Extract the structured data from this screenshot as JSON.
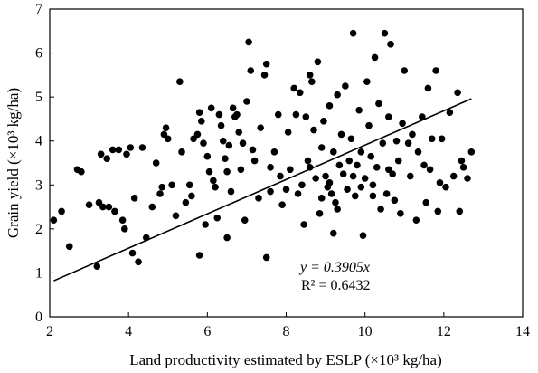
{
  "chart_data": {
    "type": "scatter",
    "title": "",
    "xlabel": "Land productivity estimated by ESLP (×10³ kg/ha)",
    "ylabel": "Grain yield (×10³ kg/ha)",
    "xlim": [
      2,
      14
    ],
    "ylim": [
      0,
      7
    ],
    "xticks": [
      2,
      4,
      6,
      8,
      10,
      12,
      14
    ],
    "yticks": [
      0,
      1,
      2,
      3,
      4,
      5,
      6,
      7
    ],
    "grid": false,
    "marker_color": "#000000",
    "series": [
      {
        "points": [
          [
            2.1,
            2.2
          ],
          [
            2.3,
            2.4
          ],
          [
            2.5,
            1.6
          ],
          [
            2.7,
            3.35
          ],
          [
            2.8,
            3.3
          ],
          [
            3.0,
            2.55
          ],
          [
            3.2,
            1.15
          ],
          [
            3.25,
            2.6
          ],
          [
            3.3,
            3.7
          ],
          [
            3.35,
            2.5
          ],
          [
            3.45,
            3.6
          ],
          [
            3.5,
            2.5
          ],
          [
            3.6,
            3.8
          ],
          [
            3.65,
            2.4
          ],
          [
            3.75,
            3.8
          ],
          [
            3.85,
            2.2
          ],
          [
            3.9,
            2.0
          ],
          [
            3.95,
            3.7
          ],
          [
            4.05,
            3.85
          ],
          [
            4.15,
            2.7
          ],
          [
            4.1,
            1.45
          ],
          [
            4.25,
            1.25
          ],
          [
            4.35,
            3.85
          ],
          [
            4.45,
            1.8
          ],
          [
            4.6,
            2.5
          ],
          [
            4.7,
            3.5
          ],
          [
            4.8,
            2.8
          ],
          [
            4.85,
            2.95
          ],
          [
            4.9,
            4.15
          ],
          [
            4.95,
            4.3
          ],
          [
            5.0,
            4.05
          ],
          [
            5.1,
            3.0
          ],
          [
            5.2,
            2.3
          ],
          [
            5.3,
            5.35
          ],
          [
            5.35,
            3.75
          ],
          [
            5.45,
            2.6
          ],
          [
            5.55,
            3.0
          ],
          [
            5.6,
            2.75
          ],
          [
            5.65,
            4.05
          ],
          [
            5.75,
            4.15
          ],
          [
            5.8,
            4.65
          ],
          [
            5.85,
            4.45
          ],
          [
            5.9,
            3.95
          ],
          [
            5.95,
            2.1
          ],
          [
            6.0,
            3.65
          ],
          [
            6.05,
            3.3
          ],
          [
            6.1,
            4.75
          ],
          [
            6.15,
            3.1
          ],
          [
            6.2,
            2.95
          ],
          [
            6.25,
            2.25
          ],
          [
            6.3,
            4.6
          ],
          [
            6.35,
            4.35
          ],
          [
            6.4,
            4.0
          ],
          [
            6.45,
            3.6
          ],
          [
            6.5,
            3.3
          ],
          [
            6.55,
            3.9
          ],
          [
            6.6,
            2.85
          ],
          [
            6.65,
            4.75
          ],
          [
            6.7,
            4.55
          ],
          [
            6.75,
            4.6
          ],
          [
            6.8,
            4.2
          ],
          [
            6.85,
            3.35
          ],
          [
            6.9,
            3.95
          ],
          [
            6.95,
            2.2
          ],
          [
            7.0,
            4.9
          ],
          [
            7.05,
            6.25
          ],
          [
            7.1,
            5.6
          ],
          [
            7.15,
            3.8
          ],
          [
            7.2,
            3.55
          ],
          [
            7.3,
            2.7
          ],
          [
            7.35,
            4.3
          ],
          [
            7.45,
            5.5
          ],
          [
            7.5,
            5.75
          ],
          [
            7.6,
            3.4
          ],
          [
            7.7,
            3.75
          ],
          [
            7.8,
            4.6
          ],
          [
            7.85,
            3.2
          ],
          [
            7.9,
            2.55
          ],
          [
            8.0,
            2.9
          ],
          [
            8.05,
            4.2
          ],
          [
            8.1,
            3.35
          ],
          [
            8.2,
            5.2
          ],
          [
            8.25,
            4.6
          ],
          [
            8.35,
            5.1
          ],
          [
            8.4,
            3.0
          ],
          [
            8.45,
            2.1
          ],
          [
            8.5,
            4.55
          ],
          [
            8.55,
            3.55
          ],
          [
            8.6,
            5.5
          ],
          [
            8.65,
            5.35
          ],
          [
            8.7,
            4.25
          ],
          [
            8.75,
            3.15
          ],
          [
            8.8,
            5.8
          ],
          [
            8.85,
            2.35
          ],
          [
            8.9,
            3.85
          ],
          [
            8.95,
            4.45
          ],
          [
            9.0,
            3.2
          ],
          [
            9.05,
            2.95
          ],
          [
            9.1,
            4.8
          ],
          [
            9.15,
            2.8
          ],
          [
            9.2,
            3.75
          ],
          [
            9.25,
            2.6
          ],
          [
            9.3,
            5.05
          ],
          [
            9.35,
            3.45
          ],
          [
            9.4,
            4.15
          ],
          [
            9.45,
            3.25
          ],
          [
            9.5,
            5.25
          ],
          [
            9.55,
            2.9
          ],
          [
            9.6,
            3.55
          ],
          [
            9.65,
            4.05
          ],
          [
            9.7,
            6.45
          ],
          [
            9.75,
            2.75
          ],
          [
            9.8,
            3.45
          ],
          [
            9.85,
            4.7
          ],
          [
            9.9,
            2.95
          ],
          [
            9.95,
            1.85
          ],
          [
            10.0,
            3.15
          ],
          [
            10.05,
            5.35
          ],
          [
            10.1,
            4.35
          ],
          [
            10.15,
            3.65
          ],
          [
            10.2,
            2.75
          ],
          [
            10.25,
            5.9
          ],
          [
            10.3,
            3.4
          ],
          [
            10.35,
            4.85
          ],
          [
            10.4,
            2.45
          ],
          [
            10.45,
            3.95
          ],
          [
            10.5,
            6.45
          ],
          [
            10.55,
            2.8
          ],
          [
            10.6,
            4.55
          ],
          [
            10.65,
            6.2
          ],
          [
            10.7,
            3.25
          ],
          [
            10.75,
            2.65
          ],
          [
            10.8,
            4.0
          ],
          [
            10.85,
            3.55
          ],
          [
            10.9,
            2.35
          ],
          [
            10.95,
            4.4
          ],
          [
            11.0,
            5.6
          ],
          [
            11.1,
            3.95
          ],
          [
            11.15,
            3.2
          ],
          [
            11.2,
            4.15
          ],
          [
            11.3,
            2.2
          ],
          [
            11.35,
            3.75
          ],
          [
            11.45,
            4.55
          ],
          [
            11.5,
            3.45
          ],
          [
            11.55,
            2.6
          ],
          [
            11.6,
            5.2
          ],
          [
            11.65,
            3.35
          ],
          [
            11.7,
            4.05
          ],
          [
            11.8,
            5.6
          ],
          [
            11.85,
            2.4
          ],
          [
            11.9,
            3.05
          ],
          [
            11.95,
            4.05
          ],
          [
            12.05,
            2.95
          ],
          [
            12.15,
            4.65
          ],
          [
            12.25,
            3.2
          ],
          [
            12.35,
            5.1
          ],
          [
            12.4,
            2.4
          ],
          [
            12.45,
            3.55
          ],
          [
            12.5,
            3.4
          ],
          [
            12.6,
            3.15
          ],
          [
            12.7,
            3.75
          ],
          [
            7.6,
            2.85
          ],
          [
            8.3,
            2.8
          ],
          [
            8.9,
            2.7
          ],
          [
            9.1,
            3.05
          ],
          [
            9.3,
            2.45
          ],
          [
            9.7,
            3.2
          ],
          [
            10.2,
            3.0
          ],
          [
            10.6,
            3.35
          ],
          [
            8.6,
            3.4
          ],
          [
            9.9,
            3.75
          ],
          [
            7.5,
            1.35
          ],
          [
            6.5,
            1.8
          ],
          [
            5.8,
            1.4
          ],
          [
            9.2,
            1.9
          ]
        ]
      }
    ],
    "trendline": {
      "x": [
        2.1,
        12.7
      ],
      "y": [
        0.82,
        4.96
      ]
    },
    "annotation": {
      "equation": "y = 0.3905x",
      "r2": "R² = 0.6432"
    }
  }
}
